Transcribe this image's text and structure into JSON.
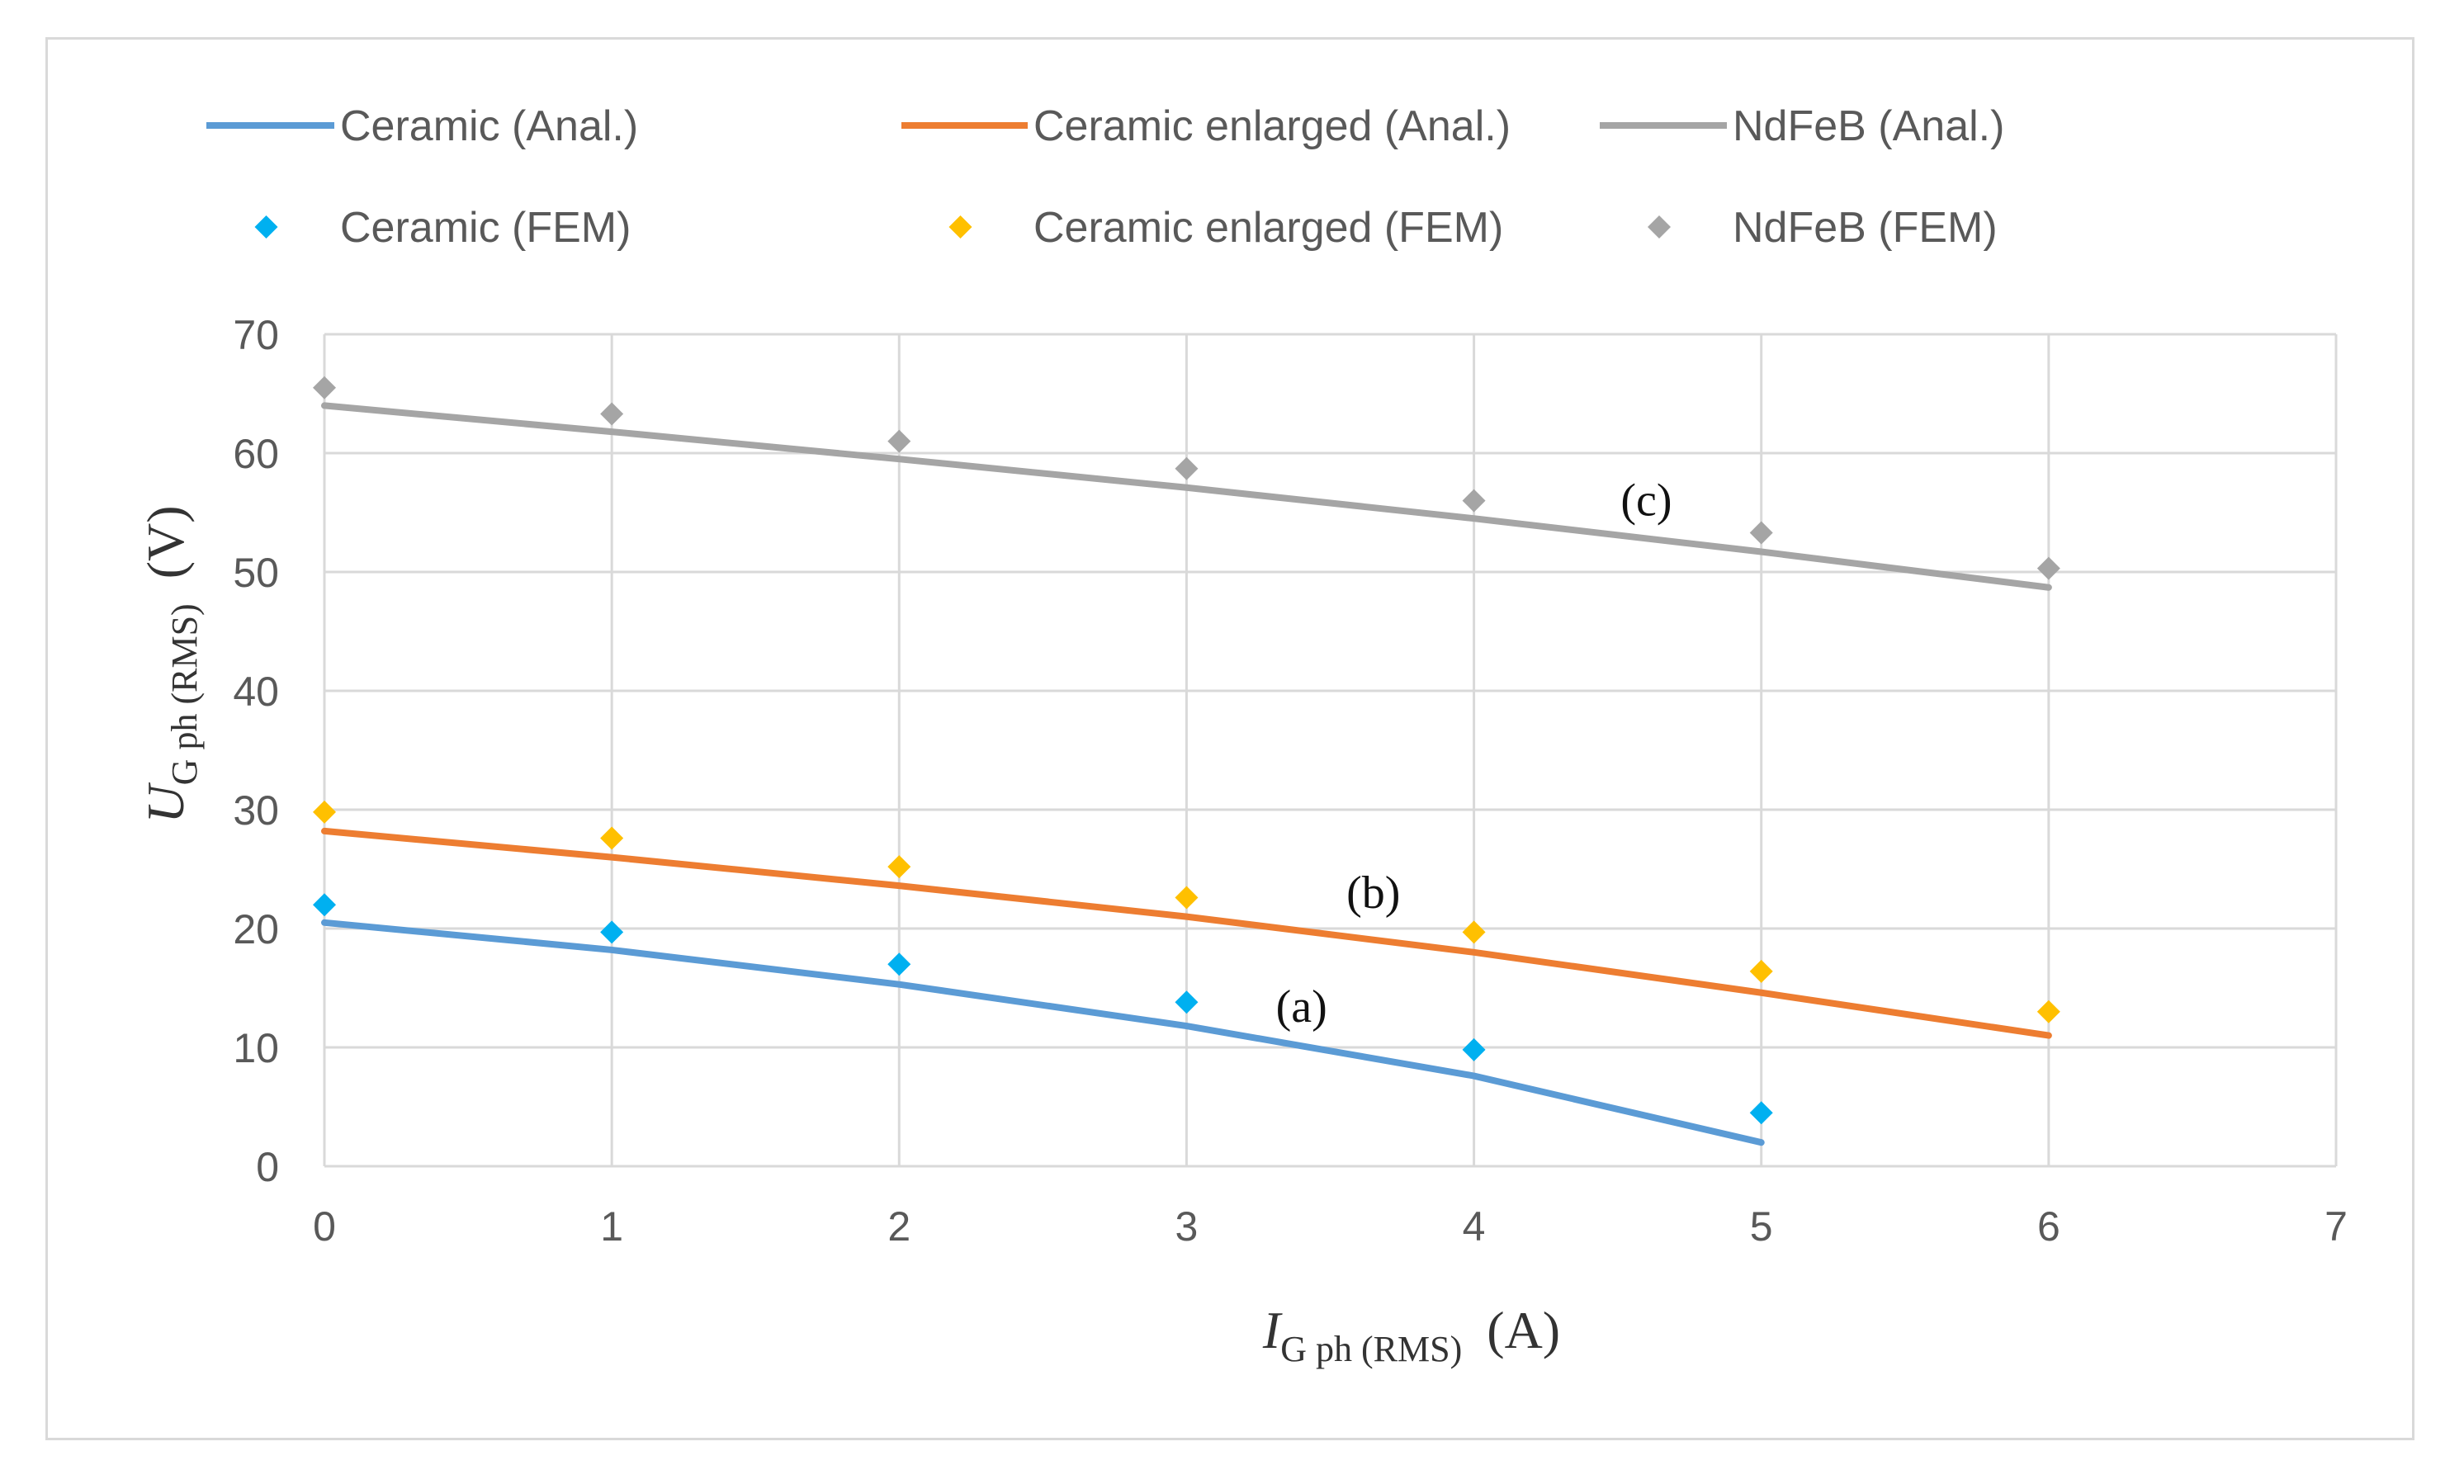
{
  "chart_data": {
    "type": "line",
    "x_axis": {
      "label_main": "I",
      "label_sub": "G ph (RMS)",
      "label_unit": "(A)",
      "range": [
        0,
        7
      ],
      "ticks": [
        "0",
        "1",
        "2",
        "3",
        "4",
        "5",
        "6",
        "7"
      ]
    },
    "y_axis": {
      "label_main": "U",
      "label_sub": "G ph (RMS)",
      "label_unit": "(V)",
      "range": [
        0,
        70
      ],
      "ticks": [
        "0",
        "10",
        "20",
        "30",
        "40",
        "50",
        "60",
        "70"
      ]
    },
    "grid": true,
    "legend_position": "top",
    "series": [
      {
        "name": "Ceramic (Anal.)",
        "kind": "line",
        "color": "#5b9bd5",
        "x": [
          0,
          1,
          2,
          3,
          4,
          5
        ],
        "y": [
          20.5,
          18.2,
          15.3,
          11.8,
          7.6,
          2.0
        ]
      },
      {
        "name": "Ceramic enlarged (Anal.)",
        "kind": "line",
        "color": "#ed7d31",
        "x": [
          0,
          1,
          2,
          3,
          4,
          5,
          6
        ],
        "y": [
          28.2,
          26.0,
          23.6,
          21.0,
          18.0,
          14.6,
          11.0
        ]
      },
      {
        "name": "NdFeB (Anal.)",
        "kind": "line",
        "color": "#a5a5a5",
        "x": [
          0,
          1,
          2,
          3,
          4,
          5,
          6
        ],
        "y": [
          64.0,
          61.8,
          59.5,
          57.1,
          54.5,
          51.7,
          48.7
        ]
      },
      {
        "name": "Ceramic (FEM)",
        "kind": "marker",
        "color": "#00b0f0",
        "x": [
          0,
          1,
          2,
          3,
          4,
          5
        ],
        "y": [
          22.0,
          19.7,
          17.0,
          13.8,
          9.8,
          4.5
        ]
      },
      {
        "name": "Ceramic enlarged (FEM)",
        "kind": "marker",
        "color": "#ffc000",
        "x": [
          0,
          1,
          2,
          3,
          4,
          5,
          6
        ],
        "y": [
          29.8,
          27.6,
          25.2,
          22.6,
          19.7,
          16.4,
          13.0
        ]
      },
      {
        "name": "NdFeB (FEM)",
        "kind": "marker",
        "color": "#a5a5a5",
        "x": [
          0,
          1,
          2,
          3,
          4,
          5,
          6
        ],
        "y": [
          65.5,
          63.3,
          61.0,
          58.7,
          56.0,
          53.3,
          50.3
        ]
      }
    ],
    "annotations": [
      {
        "text": "(a)",
        "x": 3.4,
        "y": 13.4
      },
      {
        "text": "(b)",
        "x": 3.65,
        "y": 23.0
      },
      {
        "text": "(c)",
        "x": 4.6,
        "y": 56.0
      }
    ]
  }
}
